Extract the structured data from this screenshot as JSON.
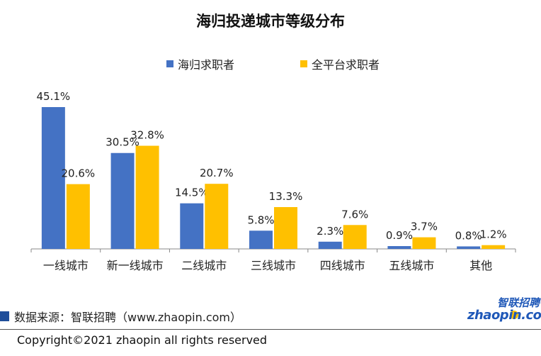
{
  "chart_data": {
    "type": "bar",
    "title": "海归投递城市等级分布",
    "categories": [
      "一线城市",
      "新一线城市",
      "二线城市",
      "三线城市",
      "四线城市",
      "五线城市",
      "其他"
    ],
    "series": [
      {
        "name": "海归求职者",
        "color": "#4472c4",
        "values": [
          45.1,
          30.5,
          14.5,
          5.8,
          2.3,
          0.9,
          0.8
        ],
        "labels": [
          "45.1%",
          "30.5%",
          "14.5%",
          "5.8%",
          "2.3%",
          "0.9%",
          "0.8%"
        ]
      },
      {
        "name": "全平台求职者",
        "color": "#ffc000",
        "values": [
          20.6,
          32.8,
          20.7,
          13.3,
          7.6,
          3.7,
          1.2
        ],
        "labels": [
          "20.6%",
          "32.8%",
          "20.7%",
          "13.3%",
          "7.6%",
          "3.7%",
          "1.2%"
        ]
      }
    ],
    "ylim": [
      0,
      45.1
    ],
    "legend_position": "top",
    "grid": false
  },
  "footer": {
    "source": "数据来源：智联招聘（www.zhaopin.com）",
    "copyright": "Copyright©2021 zhaopin all rights reserved"
  },
  "logo": {
    "latin": "zhaopin.com",
    "chinese": "智联招聘"
  }
}
